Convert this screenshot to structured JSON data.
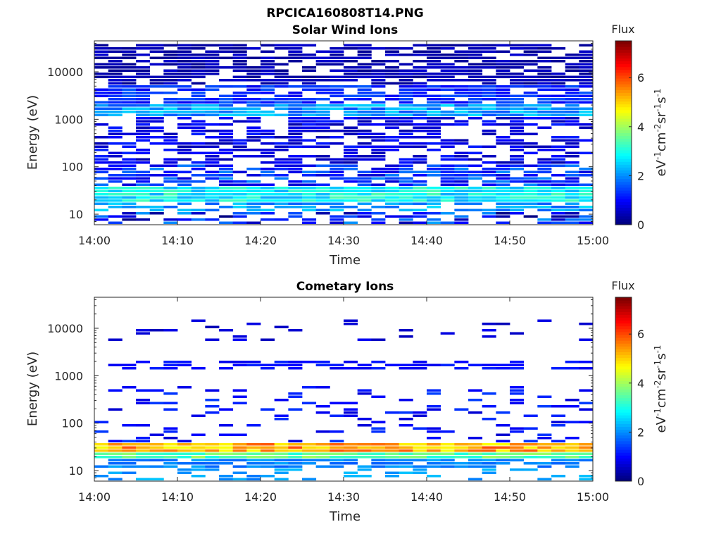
{
  "figure": {
    "title": "RPCICA160808T14.PNG"
  },
  "chart_data": [
    {
      "type": "heatmap",
      "title": "Solar Wind Ions",
      "xlabel": "Time",
      "ylabel": "Energy (eV)",
      "x_ticks": [
        "14:00",
        "14:10",
        "14:20",
        "14:30",
        "14:40",
        "14:50",
        "15:00"
      ],
      "x_range": [
        "14:00",
        "15:00"
      ],
      "y_scale": "log",
      "y_ticks": [
        "10",
        "100",
        "1000",
        "10000"
      ],
      "y_range": [
        6,
        45000
      ],
      "colorbar": {
        "title": "Flux",
        "label": "eV-1cm-2sr-1s-1",
        "label_base": "eV",
        "label_parts": [
          [
            "-1",
            "cm"
          ],
          [
            "-2",
            "sr"
          ],
          [
            "-1",
            "s"
          ],
          [
            "-1",
            ""
          ]
        ],
        "ticks": [
          "0",
          "2",
          "4",
          "6"
        ],
        "range": [
          0,
          7.5
        ],
        "colormap": "jet"
      },
      "bands": [
        {
          "energy_range": [
            6,
            11
          ],
          "flux_range": [
            0,
            2.2
          ],
          "fill": 0.55
        },
        {
          "energy_range": [
            11,
            18
          ],
          "flux_range": [
            1.6,
            2.6
          ],
          "fill": 0.7
        },
        {
          "energy_range": [
            18,
            40
          ],
          "flux_range": [
            2.2,
            3.4
          ],
          "fill": 1.0
        },
        {
          "energy_range": [
            40,
            120
          ],
          "flux_range": [
            0.6,
            2.0
          ],
          "fill": 0.72
        },
        {
          "energy_range": [
            120,
            1200
          ],
          "flux_range": [
            0.3,
            1.2
          ],
          "fill": 0.55
        },
        {
          "energy_range": [
            1200,
            2200
          ],
          "flux_range": [
            1.5,
            2.6
          ],
          "fill": 0.95
        },
        {
          "energy_range": [
            2200,
            5000
          ],
          "flux_range": [
            0.8,
            1.6
          ],
          "fill": 0.8
        },
        {
          "energy_range": [
            5000,
            40000
          ],
          "flux_range": [
            0.1,
            0.6
          ],
          "fill": 0.7
        }
      ],
      "grid": false
    },
    {
      "type": "heatmap",
      "title": "Cometary Ions",
      "xlabel": "Time",
      "ylabel": "Energy (eV)",
      "x_ticks": [
        "14:00",
        "14:10",
        "14:20",
        "14:30",
        "14:40",
        "14:50",
        "15:00"
      ],
      "x_range": [
        "14:00",
        "15:00"
      ],
      "y_scale": "log",
      "y_ticks": [
        "10",
        "100",
        "1000",
        "10000"
      ],
      "y_range": [
        6,
        45000
      ],
      "colorbar": {
        "title": "Flux",
        "label": "eV-1cm-2sr-1s-1",
        "label_base": "eV",
        "label_parts": [
          [
            "-1",
            "cm"
          ],
          [
            "-2",
            "sr"
          ],
          [
            "-1",
            "s"
          ],
          [
            "-1",
            ""
          ]
        ],
        "ticks": [
          "0",
          "2",
          "4",
          "6"
        ],
        "range": [
          0,
          7.5
        ],
        "colormap": "jet"
      },
      "bands": [
        {
          "energy_range": [
            6,
            11
          ],
          "flux_range": [
            1.8,
            2.4
          ],
          "fill": 0.3
        },
        {
          "energy_range": [
            11,
            18
          ],
          "flux_range": [
            1.6,
            2.2
          ],
          "fill": 0.75
        },
        {
          "energy_range": [
            18,
            24
          ],
          "flux_range": [
            3.0,
            4.0
          ],
          "fill": 1.0
        },
        {
          "energy_range": [
            24,
            40
          ],
          "flux_range": [
            4.6,
            6.0
          ],
          "fill": 1.0
        },
        {
          "energy_range": [
            40,
            600
          ],
          "flux_range": [
            0.6,
            1.4
          ],
          "fill": 0.18
        },
        {
          "energy_range": [
            1400,
            2000
          ],
          "flux_range": [
            0.8,
            1.2
          ],
          "fill": 0.55
        },
        {
          "energy_range": [
            5000,
            16000
          ],
          "flux_range": [
            0.4,
            0.9
          ],
          "fill": 0.12
        }
      ],
      "grid": false
    }
  ]
}
